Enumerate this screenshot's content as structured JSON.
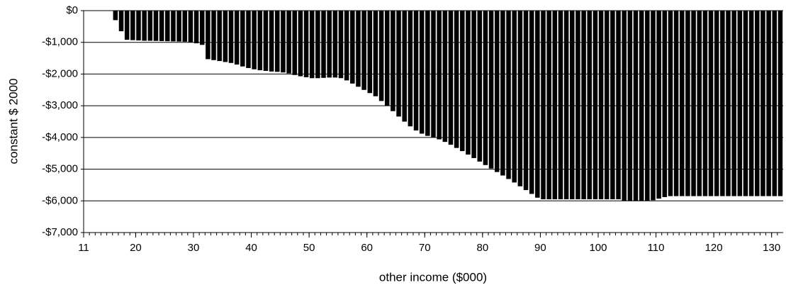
{
  "chart_data": {
    "type": "bar",
    "x_label": "other income ($000)",
    "y_label": "constant $ 2000",
    "x": [
      11,
      12,
      13,
      14,
      15,
      16,
      17,
      18,
      19,
      20,
      21,
      22,
      23,
      24,
      25,
      26,
      27,
      28,
      29,
      30,
      31,
      32,
      33,
      34,
      35,
      36,
      37,
      38,
      39,
      40,
      41,
      42,
      43,
      44,
      45,
      46,
      47,
      48,
      49,
      50,
      51,
      52,
      53,
      54,
      55,
      56,
      57,
      58,
      59,
      60,
      61,
      62,
      63,
      64,
      65,
      66,
      67,
      68,
      69,
      70,
      71,
      72,
      73,
      74,
      75,
      76,
      77,
      78,
      79,
      80,
      81,
      82,
      83,
      84,
      85,
      86,
      87,
      88,
      89,
      90,
      91,
      92,
      93,
      94,
      95,
      96,
      97,
      98,
      99,
      100,
      101,
      102,
      103,
      104,
      105,
      106,
      107,
      108,
      109,
      110,
      111,
      112,
      113,
      114,
      115,
      116,
      117,
      118,
      119,
      120,
      121,
      122,
      123,
      124,
      125,
      126,
      127,
      128,
      129,
      130,
      131
    ],
    "values": [
      0,
      0,
      0,
      0,
      0,
      -300,
      -650,
      -920,
      -930,
      -940,
      -950,
      -950,
      -955,
      -960,
      -965,
      -970,
      -975,
      -980,
      -1000,
      -1030,
      -1080,
      -1530,
      -1560,
      -1590,
      -1620,
      -1650,
      -1700,
      -1760,
      -1810,
      -1850,
      -1880,
      -1900,
      -1920,
      -1930,
      -1950,
      -1980,
      -2030,
      -2070,
      -2100,
      -2130,
      -2130,
      -2120,
      -2110,
      -2110,
      -2130,
      -2200,
      -2300,
      -2400,
      -2500,
      -2600,
      -2700,
      -2850,
      -3000,
      -3170,
      -3340,
      -3500,
      -3650,
      -3780,
      -3880,
      -3950,
      -4000,
      -4060,
      -4140,
      -4230,
      -4330,
      -4430,
      -4540,
      -4650,
      -4760,
      -4870,
      -4980,
      -5090,
      -5200,
      -5310,
      -5420,
      -5540,
      -5660,
      -5780,
      -5900,
      -5950,
      -5950,
      -5950,
      -5950,
      -5950,
      -5950,
      -5950,
      -5950,
      -5950,
      -5950,
      -5950,
      -5950,
      -5950,
      -5950,
      -6000,
      -6000,
      -6000,
      -6000,
      -6000,
      -5980,
      -5930,
      -5880,
      -5850,
      -5850,
      -5850,
      -5850,
      -5850,
      -5850,
      -5850,
      -5850,
      -5850,
      -5850,
      -5850,
      -5850,
      -5850,
      -5850,
      -5850,
      -5850,
      -5850,
      -5850,
      -5850,
      -5850
    ],
    "color": "#000000",
    "xlim": [
      11,
      132
    ],
    "xticks": [
      11,
      20,
      30,
      40,
      50,
      60,
      70,
      80,
      90,
      100,
      110,
      120,
      130
    ],
    "ylim": [
      -7000,
      0
    ],
    "yticks": [
      {
        "value": 0,
        "label": "$0"
      },
      {
        "value": -1000,
        "label": "-$1,000"
      },
      {
        "value": -2000,
        "label": "-$2,000"
      },
      {
        "value": -3000,
        "label": "-$3,000"
      },
      {
        "value": -4000,
        "label": "-$4,000"
      },
      {
        "value": -5000,
        "label": "-$5,000"
      },
      {
        "value": -6000,
        "label": "-$6,000"
      },
      {
        "value": -7000,
        "label": "-$7,000"
      }
    ],
    "grid": true
  }
}
